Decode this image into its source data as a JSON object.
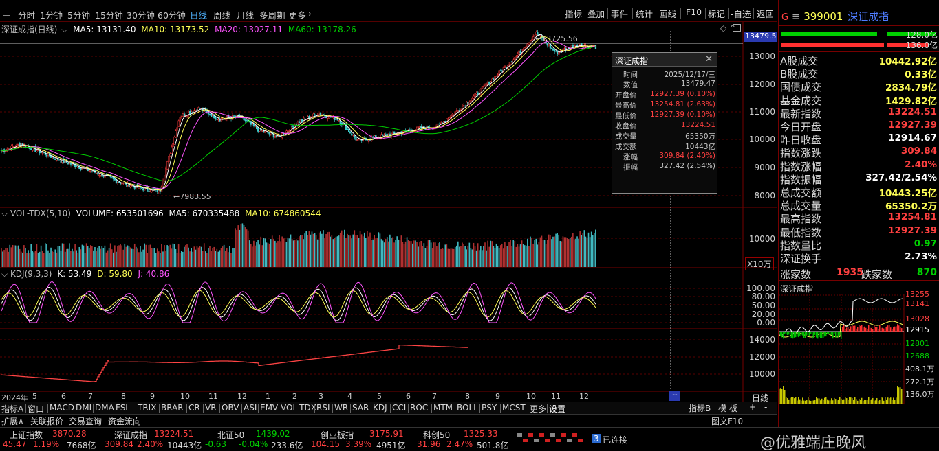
{
  "toolbar": {
    "periods": [
      "分时",
      "1分钟",
      "5分钟",
      "15分钟",
      "30分钟",
      "60分钟",
      "日线",
      "周线",
      "月线",
      "多周期",
      "更多"
    ],
    "active_period": "日线",
    "right_buttons": [
      "指标",
      "叠加",
      "事件",
      "统计",
      "画线",
      "F10",
      "标记",
      "-自选",
      "返回"
    ]
  },
  "main_chart": {
    "title": "深证成指(日线)",
    "ma": [
      {
        "label": "MA5: 13131.40",
        "color": "#ffffff"
      },
      {
        "label": "MA10: 13173.52",
        "color": "#ffff55"
      },
      {
        "label": "MA20: 13027.11",
        "color": "#ff55ff"
      },
      {
        "label": "MA60: 13178.26",
        "color": "#00d000"
      }
    ],
    "current_price_tag": "13479.5",
    "y_ticks": [
      "13000",
      "12000",
      "11000",
      "10000",
      "9000",
      "8000"
    ],
    "high_label": "13725.56",
    "low_label": "7983.55"
  },
  "chart_data": {
    "type": "candlestick",
    "title": "深证成指(日线)",
    "ylim": [
      7700,
      13800
    ],
    "x_months": [
      "2024年",
      "5",
      "6",
      "7",
      "8",
      "9",
      "10",
      "11",
      "12",
      "1",
      "2",
      "3",
      "4",
      "5",
      "6",
      "7",
      "8",
      "9",
      "10",
      "11",
      "12"
    ],
    "close_trend": [
      9450,
      9700,
      9400,
      9100,
      8850,
      8600,
      8300,
      8100,
      7983.55,
      10700,
      11000,
      10600,
      10700,
      10200,
      9950,
      10500,
      10800,
      10600,
      9800,
      9950,
      10100,
      10250,
      10350,
      10900,
      11500,
      12200,
      12900,
      13725.56,
      13000,
      13300,
      13224.51
    ],
    "y_ticks": [
      13000,
      12000,
      11000,
      10000,
      9000,
      8000
    ]
  },
  "volume_panel": {
    "title": "VOL-TDX(5,10)",
    "volume": "VOLUME: 653501696",
    "ma5": "MA5: 670335488",
    "ma10": "MA10: 674860544",
    "y_tick": "10000",
    "unit": "X10万"
  },
  "kdj_panel": {
    "title": "KDJ(9,3,3)",
    "k": "K: 53.49",
    "d": "D: 59.80",
    "j": "J: 40.86",
    "y_ticks": [
      "100.00",
      "80.00",
      "50.00",
      "20.00",
      "0.00"
    ]
  },
  "lower_panel": {
    "y_ticks": [
      "14000",
      "12000",
      "10000"
    ]
  },
  "tooltip": {
    "title": "深证成指",
    "rows": [
      {
        "k": "时间",
        "v": "2025/12/17/三",
        "c": "#c8c8c8"
      },
      {
        "k": "数值",
        "v": "13479.47",
        "c": "#c8c8c8"
      },
      {
        "k": "开盘价",
        "v": "12927.39 (0.10%)",
        "c": "#ff4040"
      },
      {
        "k": "最高价",
        "v": "13254.81 (2.63%)",
        "c": "#ff4040"
      },
      {
        "k": "最低价",
        "v": "12927.39 (0.10%)",
        "c": "#ff4040"
      },
      {
        "k": "收盘价",
        "v": "13224.51",
        "c": "#ff4040"
      },
      {
        "k": "成交量",
        "v": "65350万",
        "c": "#c8c8c8"
      },
      {
        "k": "成交额",
        "v": "10443亿",
        "c": "#c8c8c8"
      },
      {
        "k": "涨幅",
        "v": "309.84 (2.40%)",
        "c": "#ff4040"
      },
      {
        "k": "振幅",
        "v": "327.42 (2.54%)",
        "c": "#c8c8c8"
      }
    ]
  },
  "right_panel": {
    "code": "399001",
    "name": "深证成指",
    "bar_values": [
      "128.0亿",
      "136.0亿"
    ],
    "rows": [
      {
        "k": "A股成交",
        "v": "10442.92亿",
        "c": "#ffff55"
      },
      {
        "k": "B股成交",
        "v": "0.33亿",
        "c": "#ffff55"
      },
      {
        "k": "国债成交",
        "v": "2834.79亿",
        "c": "#ffff55"
      },
      {
        "k": "基金成交",
        "v": "1429.82亿",
        "c": "#ffff55"
      },
      {
        "k": "最新指数",
        "v": "13224.51",
        "c": "#ff4040"
      },
      {
        "k": "今日开盘",
        "v": "12927.39",
        "c": "#ff4040"
      },
      {
        "k": "昨日收盘",
        "v": "12914.67",
        "c": "#ffffff"
      },
      {
        "k": "指数涨跌",
        "v": "309.84",
        "c": "#ff4040"
      },
      {
        "k": "指数涨幅",
        "v": "2.40%",
        "c": "#ff4040"
      },
      {
        "k": "指数振幅",
        "v": "327.42/2.54%",
        "c": "#ffffff"
      },
      {
        "k": "总成交额",
        "v": "10443.25亿",
        "c": "#ffff55"
      },
      {
        "k": "总成交量",
        "v": "65350.2万",
        "c": "#ffff55"
      },
      {
        "k": "最高指数",
        "v": "13254.81",
        "c": "#ff4040"
      },
      {
        "k": "最低指数",
        "v": "12927.39",
        "c": "#ff4040"
      },
      {
        "k": "指数量比",
        "v": "0.97",
        "c": "#00d000"
      },
      {
        "k": "深证换手",
        "v": "2.73%",
        "c": "#ffffff"
      }
    ],
    "up_label": "涨家数",
    "up_value": "1935",
    "down_label": "跌家数",
    "down_value": "870",
    "mini_title": "深证成指",
    "mini_ticks": [
      "13255",
      "13141",
      "13028",
      "12915",
      "12801",
      "12688",
      "408.1万",
      "272.1万",
      "136.0万"
    ]
  },
  "bottom_tabs": {
    "row1": [
      "指标A",
      "窗口",
      "MACD",
      "DMI",
      "DMA",
      "FSL",
      "TRIX",
      "BRAR",
      "CR",
      "VR",
      "OBV",
      "ASI",
      "EMV",
      "VOL-TDX",
      "RSI",
      "WR",
      "SAR",
      "KDJ",
      "CCI",
      "ROC",
      "MTM",
      "BOLL",
      "PSY",
      "MCST",
      "更多",
      "设置"
    ],
    "row1_right": [
      "指标B",
      "模 板",
      "+",
      "-"
    ],
    "row2": [
      "扩展∧",
      "关联报价",
      "交易查询",
      "资金流向"
    ],
    "day_label": "日线",
    "row2_right": "图文F10"
  },
  "status_bar": {
    "indices": [
      {
        "name": "上证指数",
        "value": "3870.28",
        "change": "45.47",
        "pct": "1.19%",
        "amount": "7668亿"
      },
      {
        "name": "深证成指",
        "value": "13224.51",
        "change": "309.84",
        "pct": "2.40%",
        "amount": "10443亿"
      },
      {
        "name": "北证50",
        "value": "1439.02",
        "change": "-0.63",
        "pct": "-0.04%",
        "amount": "233.6亿"
      },
      {
        "name": "创业板指",
        "value": "3175.91",
        "change": "104.15",
        "pct": "3.39%",
        "amount": "4951亿"
      },
      {
        "name": "科创50",
        "value": "1325.33",
        "change": "31.96",
        "pct": "2.47%",
        "amount": "501.8亿"
      }
    ],
    "conn_count": "3",
    "conn_label": "已连接",
    "watermark": "@优雅端庄晚风"
  }
}
